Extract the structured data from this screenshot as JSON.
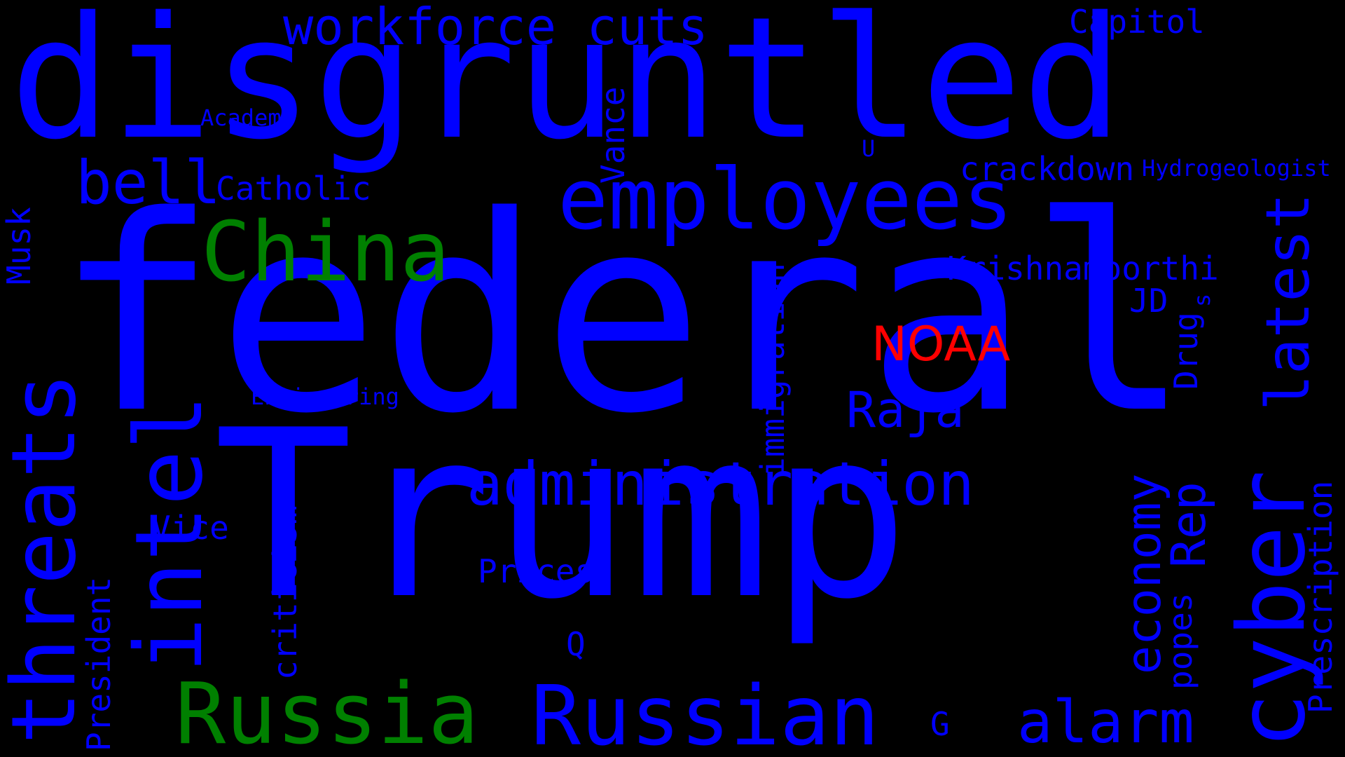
{
  "colors": {
    "background": "#000000",
    "primary_word": "#0000ff",
    "highlight_green": "#008000",
    "highlight_red": "#ff0000"
  },
  "words": {
    "federal": "federal",
    "trump": "Trump",
    "disgruntled": "disgruntled",
    "employees": "employees",
    "china": "China",
    "russia": "Russia",
    "russian": "Russian",
    "workforce_cuts": "workforce cuts",
    "administration": "administration",
    "intel": "intel",
    "threats": "threats",
    "cyber": "cyber",
    "latest": "latest",
    "economy": "economy",
    "alarm": "alarm",
    "bell": "bell",
    "raja": "Raja",
    "noaa": "NOAA",
    "rep": "Rep",
    "krishnamoorthi": "Krishnamoorthi",
    "crackdown": "crackdown",
    "hydrogeologist": "Hydrogeologist",
    "capitol": "Capitol",
    "catholic": "Catholic",
    "academy": "Academy",
    "vance": "Vance",
    "u": "U",
    "musk": "Musk",
    "immigration": "immigration",
    "jd": "JD",
    "s": "s",
    "drug": "Drug",
    "engineering": "Engineering",
    "vice": "Vice",
    "prices": "Prices",
    "criticism": "criticism",
    "president": "President",
    "q": "Q",
    "popes": "popes",
    "prescription": "Prescription",
    "g": "G"
  }
}
